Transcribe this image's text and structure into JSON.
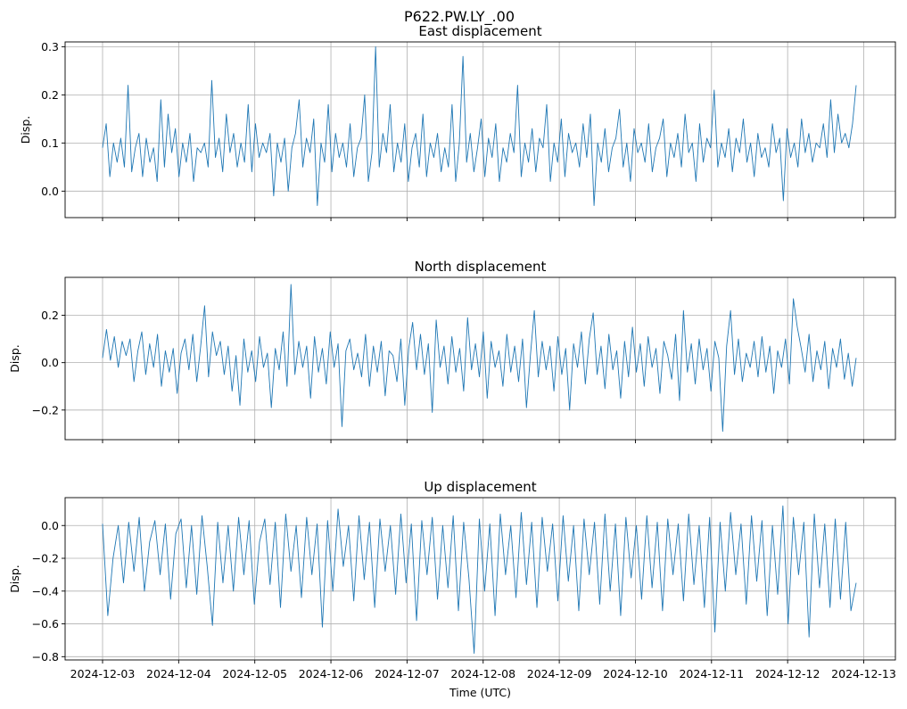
{
  "figure": {
    "suptitle": "P622.PW.LY_.00",
    "line_color": "#1f77b4",
    "grid_color": "#b0b0b0"
  },
  "chart_data": [
    {
      "type": "line",
      "title": "East displacement",
      "ylabel": "Disp.",
      "xlabel": "",
      "ylim": [
        -0.055,
        0.31
      ],
      "yticks": [
        0.0,
        0.1,
        0.2,
        0.3
      ],
      "ytick_labels": [
        "0.0",
        "0.1",
        "0.2",
        "0.3"
      ],
      "grid": true,
      "series": [
        {
          "name": "East",
          "values": [
            0.09,
            0.14,
            0.03,
            0.1,
            0.06,
            0.11,
            0.05,
            0.22,
            0.04,
            0.09,
            0.12,
            0.03,
            0.11,
            0.06,
            0.09,
            0.02,
            0.19,
            0.05,
            0.16,
            0.08,
            0.13,
            0.03,
            0.1,
            0.06,
            0.12,
            0.02,
            0.09,
            0.08,
            0.1,
            0.05,
            0.23,
            0.07,
            0.11,
            0.04,
            0.16,
            0.08,
            0.12,
            0.05,
            0.1,
            0.06,
            0.18,
            0.04,
            0.14,
            0.07,
            0.1,
            0.08,
            0.12,
            -0.01,
            0.1,
            0.06,
            0.11,
            0.0,
            0.09,
            0.12,
            0.19,
            0.05,
            0.11,
            0.08,
            0.15,
            -0.03,
            0.1,
            0.06,
            0.18,
            0.04,
            0.12,
            0.07,
            0.1,
            0.05,
            0.14,
            0.03,
            0.09,
            0.11,
            0.2,
            0.02,
            0.08,
            0.3,
            0.05,
            0.12,
            0.08,
            0.18,
            0.04,
            0.1,
            0.06,
            0.14,
            0.02,
            0.09,
            0.12,
            0.05,
            0.16,
            0.03,
            0.1,
            0.07,
            0.12,
            0.04,
            0.09,
            0.05,
            0.18,
            0.02,
            0.1,
            0.28,
            0.06,
            0.12,
            0.04,
            0.09,
            0.15,
            0.03,
            0.11,
            0.07,
            0.14,
            0.02,
            0.09,
            0.06,
            0.12,
            0.08,
            0.22,
            0.03,
            0.1,
            0.06,
            0.13,
            0.04,
            0.11,
            0.09,
            0.18,
            0.02,
            0.1,
            0.06,
            0.15,
            0.03,
            0.12,
            0.08,
            0.1,
            0.05,
            0.14,
            0.07,
            0.16,
            -0.03,
            0.1,
            0.06,
            0.13,
            0.04,
            0.09,
            0.11,
            0.17,
            0.05,
            0.1,
            0.02,
            0.13,
            0.08,
            0.1,
            0.06,
            0.14,
            0.04,
            0.09,
            0.11,
            0.15,
            0.03,
            0.1,
            0.07,
            0.12,
            0.05,
            0.16,
            0.08,
            0.1,
            0.02,
            0.14,
            0.06,
            0.11,
            0.09,
            0.21,
            0.05,
            0.1,
            0.07,
            0.13,
            0.04,
            0.11,
            0.08,
            0.15,
            0.06,
            0.1,
            0.03,
            0.12,
            0.07,
            0.09,
            0.05,
            0.14,
            0.08,
            0.11,
            -0.02,
            0.13,
            0.07,
            0.1,
            0.05,
            0.15,
            0.08,
            0.12,
            0.06,
            0.1,
            0.09,
            0.14,
            0.07,
            0.19,
            0.08,
            0.16,
            0.1,
            0.12,
            0.09,
            0.14,
            0.22
          ]
        }
      ]
    },
    {
      "type": "line",
      "title": "North displacement",
      "ylabel": "Disp.",
      "xlabel": "",
      "ylim": [
        -0.325,
        0.36
      ],
      "yticks": [
        -0.2,
        0.0,
        0.2
      ],
      "ytick_labels": [
        "−0.2",
        "0.0",
        "0.2"
      ],
      "grid": true,
      "series": [
        {
          "name": "North",
          "values": [
            0.02,
            0.14,
            0.01,
            0.11,
            -0.02,
            0.09,
            0.03,
            0.1,
            -0.08,
            0.05,
            0.13,
            -0.05,
            0.08,
            -0.02,
            0.12,
            -0.1,
            0.05,
            -0.04,
            0.06,
            -0.13,
            0.04,
            0.1,
            -0.03,
            0.12,
            -0.08,
            0.07,
            0.24,
            -0.06,
            0.13,
            0.03,
            0.09,
            -0.05,
            0.07,
            -0.12,
            0.03,
            -0.18,
            0.1,
            -0.04,
            0.05,
            -0.08,
            0.11,
            -0.02,
            0.04,
            -0.19,
            0.06,
            -0.03,
            0.13,
            -0.1,
            0.33,
            -0.05,
            0.09,
            -0.02,
            0.07,
            -0.15,
            0.11,
            -0.04,
            0.06,
            -0.09,
            0.13,
            -0.02,
            0.08,
            -0.27,
            0.05,
            0.1,
            -0.03,
            0.04,
            -0.06,
            0.12,
            -0.1,
            0.07,
            -0.04,
            0.09,
            -0.14,
            0.05,
            0.03,
            -0.08,
            0.1,
            -0.18,
            0.06,
            0.17,
            -0.03,
            0.12,
            -0.05,
            0.08,
            -0.21,
            0.18,
            -0.02,
            0.07,
            -0.09,
            0.11,
            -0.04,
            0.06,
            -0.12,
            0.19,
            -0.03,
            0.08,
            -0.06,
            0.13,
            -0.15,
            0.09,
            -0.02,
            0.05,
            -0.1,
            0.12,
            -0.04,
            0.07,
            -0.08,
            0.1,
            -0.19,
            0.03,
            0.22,
            -0.06,
            0.09,
            -0.03,
            0.07,
            -0.12,
            0.11,
            -0.05,
            0.06,
            -0.2,
            0.08,
            -0.02,
            0.13,
            -0.09,
            0.1,
            0.21,
            -0.05,
            0.07,
            -0.11,
            0.12,
            -0.03,
            0.05,
            -0.15,
            0.09,
            -0.06,
            0.15,
            -0.04,
            0.08,
            -0.1,
            0.11,
            -0.02,
            0.06,
            -0.13,
            0.09,
            0.03,
            -0.07,
            0.12,
            -0.16,
            0.22,
            -0.04,
            0.08,
            -0.09,
            0.1,
            -0.03,
            0.06,
            -0.12,
            0.09,
            0.02,
            -0.29,
            0.07,
            0.22,
            -0.05,
            0.1,
            -0.08,
            0.04,
            -0.02,
            0.09,
            -0.06,
            0.11,
            -0.04,
            0.07,
            -0.13,
            0.05,
            -0.02,
            0.1,
            -0.09,
            0.27,
            0.15,
            0.06,
            -0.04,
            0.12,
            -0.08,
            0.05,
            -0.03,
            0.09,
            -0.11,
            0.06,
            -0.02,
            0.1,
            -0.07,
            0.04,
            -0.1,
            0.02
          ]
        }
      ]
    },
    {
      "type": "line",
      "title": "Up displacement",
      "ylabel": "Disp.",
      "xlabel": "Time (UTC)",
      "ylim": [
        -0.82,
        0.17
      ],
      "yticks": [
        -0.8,
        -0.6,
        -0.4,
        -0.2,
        0.0
      ],
      "ytick_labels": [
        "−0.8",
        "−0.6",
        "−0.4",
        "−0.2",
        "0.0"
      ],
      "grid": true,
      "x_tick_labels": [
        "2024-12-03",
        "2024-12-04",
        "2024-12-05",
        "2024-12-06",
        "2024-12-07",
        "2024-12-08",
        "2024-12-09",
        "2024-12-10",
        "2024-12-11",
        "2024-12-12",
        "2024-12-13"
      ],
      "series": [
        {
          "name": "Up",
          "values": [
            0.01,
            -0.55,
            -0.2,
            0.0,
            -0.35,
            0.02,
            -0.28,
            0.05,
            -0.4,
            -0.1,
            0.03,
            -0.3,
            0.01,
            -0.45,
            -0.05,
            0.04,
            -0.38,
            0.0,
            -0.42,
            0.06,
            -0.25,
            -0.61,
            0.02,
            -0.35,
            0.0,
            -0.4,
            0.05,
            -0.3,
            0.03,
            -0.48,
            -0.1,
            0.04,
            -0.36,
            0.02,
            -0.5,
            0.07,
            -0.28,
            0.0,
            -0.44,
            0.05,
            -0.3,
            0.01,
            -0.62,
            0.03,
            -0.4,
            0.1,
            -0.25,
            0.0,
            -0.46,
            0.06,
            -0.33,
            0.02,
            -0.5,
            0.04,
            -0.28,
            0.0,
            -0.42,
            0.07,
            -0.35,
            0.01,
            -0.58,
            0.03,
            -0.3,
            0.05,
            -0.45,
            0.0,
            -0.38,
            0.06,
            -0.52,
            0.02,
            -0.32,
            -0.78,
            0.04,
            -0.4,
            0.01,
            -0.55,
            0.07,
            -0.3,
            0.0,
            -0.44,
            0.08,
            -0.36,
            0.02,
            -0.5,
            0.05,
            -0.28,
            0.01,
            -0.46,
            0.06,
            -0.34,
            0.0,
            -0.52,
            0.04,
            -0.3,
            0.02,
            -0.48,
            0.07,
            -0.4,
            0.01,
            -0.55,
            0.05,
            -0.32,
            0.0,
            -0.45,
            0.06,
            -0.38,
            0.02,
            -0.52,
            0.04,
            -0.3,
            0.01,
            -0.46,
            0.07,
            -0.36,
            0.0,
            -0.5,
            0.05,
            -0.65,
            0.02,
            -0.4,
            0.08,
            -0.3,
            0.01,
            -0.48,
            0.06,
            -0.34,
            0.03,
            -0.55,
            0.0,
            -0.42,
            0.12,
            -0.6,
            0.05,
            -0.3,
            0.02,
            -0.68,
            0.07,
            -0.38,
            0.01,
            -0.5,
            0.04,
            -0.45,
            0.02,
            -0.52,
            -0.35
          ]
        }
      ]
    }
  ]
}
